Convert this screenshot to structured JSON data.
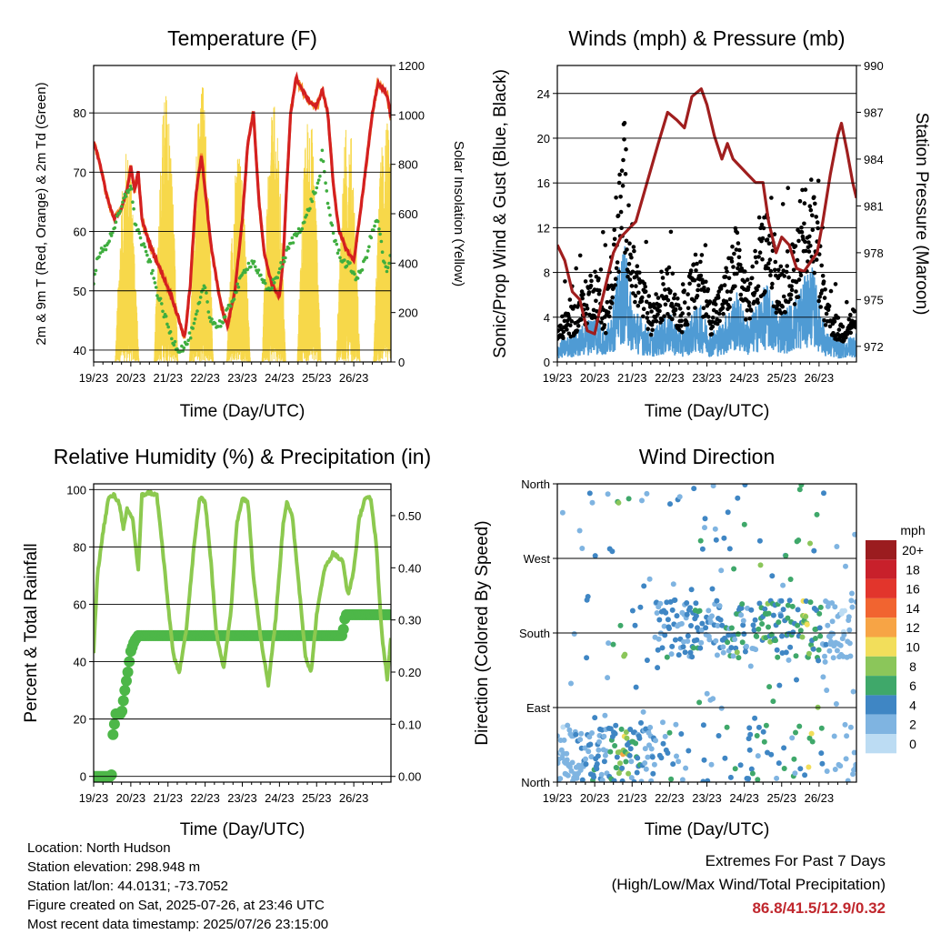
{
  "colors": {
    "temp_2m": "#d42020",
    "temp_9m": "#f5902a",
    "dewpoint": "#3fae3f",
    "solar": "#f7d84a",
    "wind": "#4f9bd4",
    "gust": "#000000",
    "pressure": "#a01e1e",
    "rh": "#8cc94f",
    "rain": "#4db748",
    "extremes": "#c0272d"
  },
  "chart_data": [
    {
      "type": "line",
      "title": "Temperature (F)",
      "xlabel": "Time (Day/UTC)",
      "ylabel": "2m & 9m T (Red, Orange) & 2m Td (Green)",
      "ylabel_right": "Solar Insolation (Yellow)",
      "x_ticks": [
        "19/23",
        "20/23",
        "21/23",
        "22/23",
        "23/23",
        "24/23",
        "25/23",
        "26/23"
      ],
      "ylim": [
        38,
        88
      ],
      "y_ticks": [
        40,
        50,
        60,
        70,
        80
      ],
      "ylim_right": [
        0,
        1200
      ],
      "y_ticks_right": [
        0,
        200,
        400,
        600,
        800,
        1000,
        1200
      ],
      "grid": true,
      "series": [
        {
          "key": "temp",
          "values": [
            [
              0,
              75
            ],
            [
              0.15,
              72
            ],
            [
              0.35,
              66
            ],
            [
              0.55,
              62
            ],
            [
              0.75,
              64
            ],
            [
              0.9,
              67
            ],
            [
              1,
              71
            ],
            [
              1.1,
              67
            ],
            [
              1.2,
              70
            ],
            [
              1.3,
              62
            ],
            [
              1.5,
              58
            ],
            [
              1.7,
              55
            ],
            [
              1.9,
              52
            ],
            [
              2.1,
              49
            ],
            [
              2.3,
              45
            ],
            [
              2.45,
              42
            ],
            [
              2.6,
              51
            ],
            [
              2.75,
              66
            ],
            [
              2.9,
              73
            ],
            [
              3,
              67
            ],
            [
              3.15,
              58
            ],
            [
              3.3,
              52
            ],
            [
              3.45,
              47
            ],
            [
              3.6,
              44
            ],
            [
              3.8,
              50
            ],
            [
              4.0,
              62
            ],
            [
              4.15,
              75
            ],
            [
              4.3,
              80
            ],
            [
              4.45,
              65
            ],
            [
              4.6,
              56
            ],
            [
              4.8,
              51
            ],
            [
              5,
              49
            ],
            [
              5.1,
              55
            ],
            [
              5.2,
              68
            ],
            [
              5.3,
              80
            ],
            [
              5.45,
              86
            ],
            [
              5.6,
              84
            ],
            [
              5.8,
              82
            ],
            [
              6,
              81
            ],
            [
              6.15,
              84
            ],
            [
              6.3,
              80
            ],
            [
              6.45,
              68
            ],
            [
              6.6,
              60
            ],
            [
              6.8,
              57
            ],
            [
              7,
              55
            ],
            [
              7.15,
              62
            ],
            [
              7.35,
              72
            ],
            [
              7.5,
              80
            ],
            [
              7.65,
              85
            ],
            [
              7.8,
              84
            ],
            [
              7.9,
              83
            ],
            [
              8,
              79
            ]
          ]
        },
        {
          "key": "dew",
          "values": [
            [
              0,
              51
            ],
            [
              0.1,
              56
            ],
            [
              0.3,
              57
            ],
            [
              0.5,
              60
            ],
            [
              0.7,
              63
            ],
            [
              0.85,
              66
            ],
            [
              1,
              68
            ],
            [
              1.1,
              62
            ],
            [
              1.3,
              58
            ],
            [
              1.5,
              55
            ],
            [
              1.7,
              50
            ],
            [
              1.9,
              46
            ],
            [
              2.1,
              42
            ],
            [
              2.3,
              40
            ],
            [
              2.5,
              41
            ],
            [
              2.7,
              44
            ],
            [
              2.85,
              48
            ],
            [
              3,
              51
            ],
            [
              3.1,
              46
            ],
            [
              3.3,
              44
            ],
            [
              3.5,
              45
            ],
            [
              3.7,
              48
            ],
            [
              3.9,
              51
            ],
            [
              4.1,
              54
            ],
            [
              4.3,
              55
            ],
            [
              4.5,
              52
            ],
            [
              4.7,
              50
            ],
            [
              4.9,
              52
            ],
            [
              5.1,
              55
            ],
            [
              5.3,
              58
            ],
            [
              5.5,
              60
            ],
            [
              5.7,
              62
            ],
            [
              5.9,
              66
            ],
            [
              6.05,
              68
            ],
            [
              6.15,
              73
            ],
            [
              6.3,
              65
            ],
            [
              6.5,
              58
            ],
            [
              6.7,
              55
            ],
            [
              6.9,
              54
            ],
            [
              7.1,
              52
            ],
            [
              7.3,
              55
            ],
            [
              7.5,
              60
            ],
            [
              7.65,
              62
            ],
            [
              7.8,
              55
            ],
            [
              7.9,
              53
            ],
            [
              8,
              56
            ]
          ]
        }
      ],
      "solar_peaks": [
        [
          0.9,
          870
        ],
        [
          1.95,
          1110
        ],
        [
          2.9,
          1160
        ],
        [
          3.9,
          850
        ],
        [
          4.85,
          1040
        ],
        [
          5.8,
          1030
        ],
        [
          6.85,
          1000
        ],
        [
          7.85,
          1010
        ]
      ]
    },
    {
      "type": "scatter",
      "title": "Winds (mph) & Pressure (mb)",
      "xlabel": "Time (Day/UTC)",
      "ylabel": "Sonic/Prop Wind & Gust (Blue, Black)",
      "ylabel_right": "Station Pressure (Maroon)",
      "x_ticks": [
        "19/23",
        "20/23",
        "21/23",
        "22/23",
        "23/23",
        "24/23",
        "25/23",
        "26/23"
      ],
      "ylim": [
        0,
        26.5
      ],
      "y_ticks": [
        0,
        4,
        8,
        12,
        16,
        20,
        24
      ],
      "ylim_right": [
        971,
        990
      ],
      "y_ticks_right": [
        972,
        975,
        978,
        981,
        984,
        987,
        990
      ],
      "grid": true,
      "wind_activity": [
        [
          0,
          2
        ],
        [
          0.5,
          3
        ],
        [
          1,
          5
        ],
        [
          1.3,
          3
        ],
        [
          1.8,
          12
        ],
        [
          2,
          6
        ],
        [
          2.5,
          3
        ],
        [
          3,
          5
        ],
        [
          3.3,
          3
        ],
        [
          3.8,
          6
        ],
        [
          4.1,
          3
        ],
        [
          4.4,
          4
        ],
        [
          4.8,
          7
        ],
        [
          5.1,
          4
        ],
        [
          5.6,
          8
        ],
        [
          5.9,
          5
        ],
        [
          6.3,
          6
        ],
        [
          6.8,
          10
        ],
        [
          7.2,
          3
        ],
        [
          7.6,
          2
        ],
        [
          8,
          3
        ]
      ],
      "pressure": [
        [
          0,
          978.5
        ],
        [
          0.2,
          977.5
        ],
        [
          0.4,
          975.5
        ],
        [
          0.6,
          975
        ],
        [
          0.8,
          973
        ],
        [
          1,
          972.8
        ],
        [
          1.15,
          974.5
        ],
        [
          1.3,
          976
        ],
        [
          1.5,
          978
        ],
        [
          1.7,
          979
        ],
        [
          1.9,
          979.5
        ],
        [
          2.1,
          980
        ],
        [
          2.4,
          982.5
        ],
        [
          2.7,
          985
        ],
        [
          2.95,
          987
        ],
        [
          3.2,
          986.5
        ],
        [
          3.4,
          986
        ],
        [
          3.6,
          988
        ],
        [
          3.85,
          988.5
        ],
        [
          4.0,
          987.5
        ],
        [
          4.2,
          985.5
        ],
        [
          4.4,
          984
        ],
        [
          4.55,
          985
        ],
        [
          4.7,
          984
        ],
        [
          4.9,
          983.5
        ],
        [
          5.1,
          983
        ],
        [
          5.3,
          982.5
        ],
        [
          5.5,
          982.5
        ],
        [
          5.65,
          980
        ],
        [
          5.85,
          978
        ],
        [
          6.0,
          979
        ],
        [
          6.2,
          978.5
        ],
        [
          6.4,
          977
        ],
        [
          6.6,
          976.8
        ],
        [
          6.8,
          977.5
        ],
        [
          6.95,
          978
        ],
        [
          7.1,
          980
        ],
        [
          7.3,
          983
        ],
        [
          7.5,
          985.5
        ],
        [
          7.6,
          986.3
        ],
        [
          7.75,
          984.5
        ],
        [
          7.9,
          982.5
        ],
        [
          8,
          981.5
        ]
      ]
    },
    {
      "type": "line",
      "title": "Relative Humidity (%) & Precipitation (in)",
      "xlabel": "Time (Day/UTC)",
      "ylabel": "Percent & Total Rainfall",
      "x_ticks": [
        "19/23",
        "20/23",
        "21/23",
        "22/23",
        "23/23",
        "24/23",
        "25/23",
        "26/23"
      ],
      "ylim": [
        -2,
        102
      ],
      "y_ticks": [
        0,
        20,
        40,
        60,
        80,
        100
      ],
      "ylim_right": [
        -0.011,
        0.561
      ],
      "y_ticks_right": [
        "0.00",
        "0.10",
        "0.20",
        "0.30",
        "0.40",
        "0.50"
      ],
      "grid": true,
      "series": [
        {
          "key": "rh",
          "values": [
            [
              0,
              43
            ],
            [
              0.1,
              70
            ],
            [
              0.25,
              85
            ],
            [
              0.4,
              97
            ],
            [
              0.55,
              98
            ],
            [
              0.7,
              95
            ],
            [
              0.8,
              86
            ],
            [
              0.9,
              93
            ],
            [
              1.05,
              90
            ],
            [
              1.2,
              72
            ],
            [
              1.3,
              98
            ],
            [
              1.5,
              99
            ],
            [
              1.7,
              98
            ],
            [
              1.85,
              80
            ],
            [
              2.0,
              60
            ],
            [
              2.15,
              42
            ],
            [
              2.3,
              36
            ],
            [
              2.5,
              52
            ],
            [
              2.7,
              80
            ],
            [
              2.85,
              97
            ],
            [
              3.0,
              96
            ],
            [
              3.15,
              76
            ],
            [
              3.3,
              50
            ],
            [
              3.5,
              38
            ],
            [
              3.7,
              58
            ],
            [
              3.85,
              88
            ],
            [
              4.0,
              97
            ],
            [
              4.15,
              96
            ],
            [
              4.3,
              70
            ],
            [
              4.5,
              48
            ],
            [
              4.7,
              32
            ],
            [
              4.9,
              55
            ],
            [
              5.1,
              88
            ],
            [
              5.2,
              96
            ],
            [
              5.35,
              90
            ],
            [
              5.5,
              70
            ],
            [
              5.7,
              42
            ],
            [
              5.85,
              36
            ],
            [
              6.0,
              56
            ],
            [
              6.2,
              72
            ],
            [
              6.45,
              78
            ],
            [
              6.6,
              76
            ],
            [
              6.7,
              75
            ],
            [
              6.85,
              63
            ],
            [
              7.0,
              72
            ],
            [
              7.15,
              90
            ],
            [
              7.3,
              97
            ],
            [
              7.45,
              97
            ],
            [
              7.6,
              82
            ],
            [
              7.75,
              50
            ],
            [
              7.9,
              34
            ],
            [
              8,
              48
            ]
          ]
        },
        {
          "key": "rain",
          "values": [
            [
              0,
              0
            ],
            [
              0.45,
              0
            ],
            [
              0.5,
              0.005
            ],
            [
              0.52,
              0.08
            ],
            [
              0.6,
              0.12
            ],
            [
              0.75,
              0.12
            ],
            [
              0.85,
              0.17
            ],
            [
              0.92,
              0.2
            ],
            [
              1,
              0.24
            ],
            [
              1.1,
              0.26
            ],
            [
              1.2,
              0.27
            ],
            [
              6.65,
              0.27
            ],
            [
              6.7,
              0.27
            ],
            [
              6.75,
              0.3
            ],
            [
              6.8,
              0.31
            ],
            [
              8,
              0.31
            ]
          ]
        }
      ]
    },
    {
      "type": "scatter",
      "title": "Wind Direction",
      "xlabel": "Time (Day/UTC)",
      "ylabel": "Direction (Colored By Speed)",
      "x_ticks": [
        "19/23",
        "20/23",
        "21/23",
        "22/23",
        "23/23",
        "24/23",
        "25/23",
        "26/23"
      ],
      "y_ticks": [
        "North",
        "East",
        "South",
        "West",
        "North"
      ],
      "grid": true,
      "legend_title": "mph",
      "legend_labels": [
        "20+",
        "18",
        "16",
        "14",
        "12",
        "10",
        "8",
        "6",
        "4",
        "2",
        "0"
      ],
      "legend_colors": [
        "#9b1c1f",
        "#c8202b",
        "#e2352c",
        "#f16430",
        "#f7a445",
        "#f2de5b",
        "#8bc65a",
        "#3fa86a",
        "#3f86c4",
        "#7fb4e1",
        "#bcdcf3"
      ]
    }
  ],
  "info": {
    "location": "Location: North Hudson",
    "elevation": "Station elevation: 298.948 m",
    "latlon": "Station lat/lon: 44.0131; -73.7052",
    "created": "Figure created on Sat, 2025-07-26, at 23:46 UTC",
    "recent": "Most recent data timestamp: 2025/07/26 23:15:00"
  },
  "extremes": {
    "line1": "Extremes For Past 7 Days",
    "line2": "(High/Low/Max Wind/Total Precipitation)",
    "values": "86.8/41.5/12.9/0.32"
  }
}
